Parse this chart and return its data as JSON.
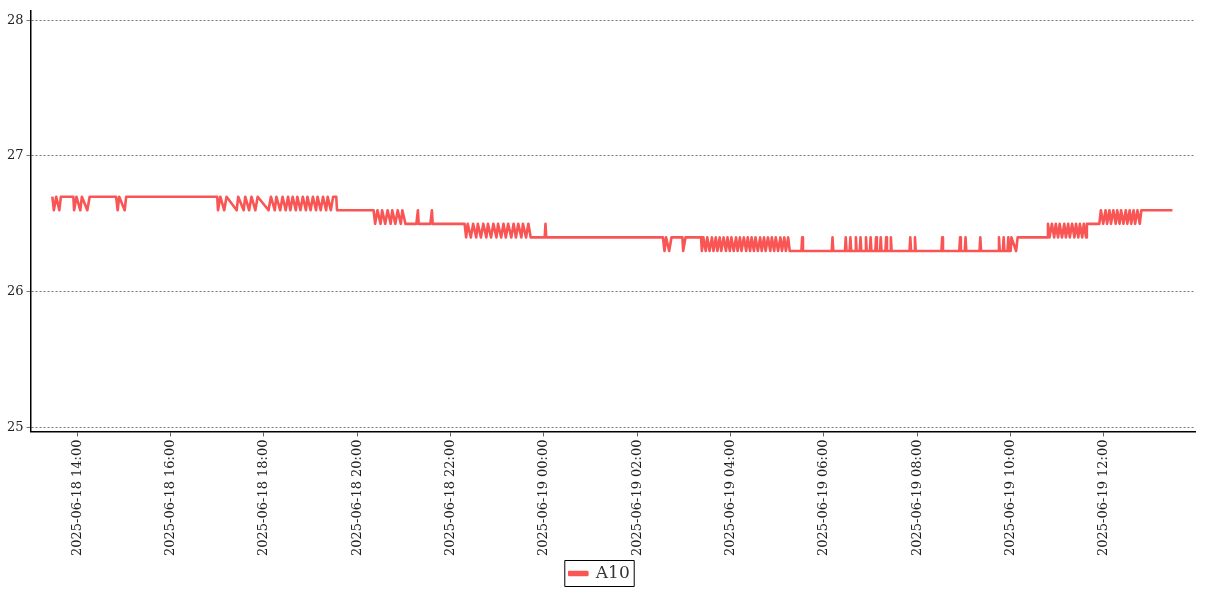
{
  "chart_data": {
    "type": "line",
    "legend": "bottom",
    "grid": "y",
    "marker": "none",
    "line_style": "solid",
    "xlim": [
      "2025-06-18T13:00",
      "2025-06-19T13:57"
    ],
    "xticks": [
      {
        "value": "2025-06-18T14:00",
        "label": "2025-06-18 14:00"
      },
      {
        "value": "2025-06-18T16:00",
        "label": "2025-06-18 16:00"
      },
      {
        "value": "2025-06-18T18:00",
        "label": "2025-06-18 18:00"
      },
      {
        "value": "2025-06-18T20:00",
        "label": "2025-06-18 20:00"
      },
      {
        "value": "2025-06-18T22:00",
        "label": "2025-06-18 22:00"
      },
      {
        "value": "2025-06-19T00:00",
        "label": "2025-06-19 00:00"
      },
      {
        "value": "2025-06-19T02:00",
        "label": "2025-06-19 02:00"
      },
      {
        "value": "2025-06-19T04:00",
        "label": "2025-06-19 04:00"
      },
      {
        "value": "2025-06-19T06:00",
        "label": "2025-06-19 06:00"
      },
      {
        "value": "2025-06-19T08:00",
        "label": "2025-06-19 08:00"
      },
      {
        "value": "2025-06-19T10:00",
        "label": "2025-06-19 10:00"
      },
      {
        "value": "2025-06-19T12:00",
        "label": "2025-06-19 12:00"
      }
    ],
    "ylim": [
      24.97,
      28.07
    ],
    "yticks": [
      25,
      26,
      27,
      28
    ],
    "x": [
      "2025-06-18T13:28",
      "2025-06-18T13:30",
      "2025-06-18T13:33",
      "2025-06-18T13:37",
      "2025-06-18T13:39",
      "2025-06-18T13:55",
      "2025-06-18T13:56",
      "2025-06-18T13:59",
      "2025-06-18T14:04",
      "2025-06-18T14:06",
      "2025-06-18T14:13",
      "2025-06-18T14:16",
      "2025-06-18T14:50",
      "2025-06-18T14:52",
      "2025-06-18T14:54",
      "2025-06-18T15:01",
      "2025-06-18T15:03",
      "2025-06-18T17:00",
      "2025-06-18T17:01",
      "2025-06-18T17:04",
      "2025-06-18T17:09",
      "2025-06-18T17:12",
      "2025-06-18T17:25",
      "2025-06-18T17:27",
      "2025-06-18T17:34",
      "2025-06-18T17:36",
      "2025-06-18T17:41",
      "2025-06-18T17:44",
      "2025-06-18T17:49",
      "2025-06-18T17:52",
      "2025-06-18T18:06",
      "2025-06-18T18:09",
      "2025-06-18T18:14",
      "2025-06-18T18:16",
      "2025-06-18T18:21",
      "2025-06-18T18:24",
      "2025-06-18T18:28",
      "2025-06-18T18:31",
      "2025-06-18T18:34",
      "2025-06-18T18:37",
      "2025-06-18T18:41",
      "2025-06-18T18:43",
      "2025-06-18T18:47",
      "2025-06-18T18:50",
      "2025-06-18T18:54",
      "2025-06-18T18:56",
      "2025-06-18T19:00",
      "2025-06-18T19:03",
      "2025-06-18T19:07",
      "2025-06-18T19:09",
      "2025-06-18T19:13",
      "2025-06-18T19:16",
      "2025-06-18T19:20",
      "2025-06-18T19:22",
      "2025-06-18T19:26",
      "2025-06-18T19:29",
      "2025-06-18T19:33",
      "2025-06-18T19:34",
      "2025-06-18T20:21",
      "2025-06-18T20:23",
      "2025-06-18T20:26",
      "2025-06-18T20:30",
      "2025-06-18T20:32",
      "2025-06-18T20:36",
      "2025-06-18T20:39",
      "2025-06-18T20:43",
      "2025-06-18T20:45",
      "2025-06-18T20:49",
      "2025-06-18T20:52",
      "2025-06-18T20:56",
      "2025-06-18T20:58",
      "2025-06-18T21:02",
      "2025-06-18T21:16",
      "2025-06-18T21:18",
      "2025-06-18T21:19",
      "2025-06-18T21:34",
      "2025-06-18T21:36",
      "2025-06-18T21:37",
      "2025-06-18T22:18",
      "2025-06-18T22:20",
      "2025-06-18T22:22",
      "2025-06-18T22:26",
      "2025-06-18T22:29",
      "2025-06-18T22:33",
      "2025-06-18T22:35",
      "2025-06-18T22:39",
      "2025-06-18T22:42",
      "2025-06-18T22:46",
      "2025-06-18T22:48",
      "2025-06-18T22:52",
      "2025-06-18T22:55",
      "2025-06-18T22:59",
      "2025-06-18T23:01",
      "2025-06-18T23:05",
      "2025-06-18T23:08",
      "2025-06-18T23:11",
      "2025-06-18T23:14",
      "2025-06-18T23:18",
      "2025-06-18T23:21",
      "2025-06-18T23:24",
      "2025-06-18T23:27",
      "2025-06-18T23:31",
      "2025-06-18T23:33",
      "2025-06-18T23:37",
      "2025-06-18T23:40",
      "2025-06-18T23:43",
      "2025-06-19T00:01",
      "2025-06-19T00:02",
      "2025-06-19T00:03",
      "2025-06-19T02:33",
      "2025-06-19T02:35",
      "2025-06-19T02:37",
      "2025-06-19T02:41",
      "2025-06-19T02:44",
      "2025-06-19T02:58",
      "2025-06-19T02:59",
      "2025-06-19T03:02",
      "2025-06-19T03:22",
      "2025-06-19T03:23",
      "2025-06-19T03:25",
      "2025-06-19T03:28",
      "2025-06-19T03:30",
      "2025-06-19T03:33",
      "2025-06-19T03:36",
      "2025-06-19T03:38",
      "2025-06-19T03:41",
      "2025-06-19T03:43",
      "2025-06-19T03:46",
      "2025-06-19T03:48",
      "2025-06-19T03:51",
      "2025-06-19T03:54",
      "2025-06-19T03:56",
      "2025-06-19T03:59",
      "2025-06-19T04:01",
      "2025-06-19T04:04",
      "2025-06-19T04:07",
      "2025-06-19T04:09",
      "2025-06-19T04:12",
      "2025-06-19T04:14",
      "2025-06-19T04:17",
      "2025-06-19T04:20",
      "2025-06-19T04:22",
      "2025-06-19T04:25",
      "2025-06-19T04:27",
      "2025-06-19T04:30",
      "2025-06-19T04:32",
      "2025-06-19T04:35",
      "2025-06-19T04:38",
      "2025-06-19T04:40",
      "2025-06-19T04:43",
      "2025-06-19T04:45",
      "2025-06-19T04:48",
      "2025-06-19T04:51",
      "2025-06-19T04:53",
      "2025-06-19T04:56",
      "2025-06-19T04:58",
      "2025-06-19T05:01",
      "2025-06-19T05:04",
      "2025-06-19T05:06",
      "2025-06-19T05:09",
      "2025-06-19T05:11",
      "2025-06-19T05:14",
      "2025-06-19T05:16",
      "2025-06-19T05:31",
      "2025-06-19T05:32",
      "2025-06-19T05:33",
      "2025-06-19T06:10",
      "2025-06-19T06:11",
      "2025-06-19T06:12",
      "2025-06-19T06:27",
      "2025-06-19T06:28",
      "2025-06-19T06:29",
      "2025-06-19T06:33",
      "2025-06-19T06:34",
      "2025-06-19T06:35",
      "2025-06-19T06:40",
      "2025-06-19T06:41",
      "2025-06-19T06:42",
      "2025-06-19T06:46",
      "2025-06-19T06:47",
      "2025-06-19T06:48",
      "2025-06-19T06:53",
      "2025-06-19T06:54",
      "2025-06-19T06:55",
      "2025-06-19T06:59",
      "2025-06-19T07:00",
      "2025-06-19T07:01",
      "2025-06-19T07:06",
      "2025-06-19T07:07",
      "2025-06-19T07:08",
      "2025-06-19T07:12",
      "2025-06-19T07:13",
      "2025-06-19T07:14",
      "2025-06-19T07:19",
      "2025-06-19T07:20",
      "2025-06-19T07:21",
      "2025-06-19T07:25",
      "2025-06-19T07:26",
      "2025-06-19T07:27",
      "2025-06-19T07:50",
      "2025-06-19T07:51",
      "2025-06-19T07:52",
      "2025-06-19T07:56",
      "2025-06-19T07:57",
      "2025-06-19T07:58",
      "2025-06-19T08:31",
      "2025-06-19T08:32",
      "2025-06-19T08:33",
      "2025-06-19T08:54",
      "2025-06-19T08:55",
      "2025-06-19T08:56",
      "2025-06-19T09:01",
      "2025-06-19T09:02",
      "2025-06-19T09:03",
      "2025-06-19T09:20",
      "2025-06-19T09:21",
      "2025-06-19T09:22",
      "2025-06-19T09:44",
      "2025-06-19T09:45",
      "2025-06-19T09:46",
      "2025-06-19T09:50",
      "2025-06-19T09:51",
      "2025-06-19T09:52",
      "2025-06-19T09:56",
      "2025-06-19T09:57",
      "2025-06-19T09:58",
      "2025-06-19T10:00",
      "2025-06-19T10:01",
      "2025-06-19T10:07",
      "2025-06-19T10:09",
      "2025-06-19T10:47",
      "2025-06-19T10:48",
      "2025-06-19T10:50",
      "2025-06-19T10:53",
      "2025-06-19T10:56",
      "2025-06-19T10:58",
      "2025-06-19T11:01",
      "2025-06-19T11:03",
      "2025-06-19T11:06",
      "2025-06-19T11:09",
      "2025-06-19T11:11",
      "2025-06-19T11:14",
      "2025-06-19T11:16",
      "2025-06-19T11:19",
      "2025-06-19T11:22",
      "2025-06-19T11:24",
      "2025-06-19T11:27",
      "2025-06-19T11:29",
      "2025-06-19T11:32",
      "2025-06-19T11:34",
      "2025-06-19T11:37",
      "2025-06-19T11:38",
      "2025-06-19T11:54",
      "2025-06-19T11:56",
      "2025-06-19T11:59",
      "2025-06-19T12:02",
      "2025-06-19T12:04",
      "2025-06-19T12:07",
      "2025-06-19T12:09",
      "2025-06-19T12:12",
      "2025-06-19T12:15",
      "2025-06-19T12:17",
      "2025-06-19T12:20",
      "2025-06-19T12:22",
      "2025-06-19T12:25",
      "2025-06-19T12:28",
      "2025-06-19T12:30",
      "2025-06-19T12:33",
      "2025-06-19T12:35",
      "2025-06-19T12:38",
      "2025-06-19T12:40",
      "2025-06-19T12:43",
      "2025-06-19T12:46",
      "2025-06-19T12:48",
      "2025-06-19T13:28"
    ],
    "series": [
      {
        "name": "A10",
        "color": "#fa5555",
        "values": [
          26.7,
          26.6,
          26.7,
          26.6,
          26.7,
          26.7,
          26.6,
          26.7,
          26.6,
          26.7,
          26.6,
          26.7,
          26.7,
          26.6,
          26.7,
          26.6,
          26.7,
          26.7,
          26.6,
          26.7,
          26.6,
          26.7,
          26.6,
          26.7,
          26.6,
          26.7,
          26.6,
          26.7,
          26.6,
          26.7,
          26.6,
          26.7,
          26.6,
          26.7,
          26.6,
          26.7,
          26.6,
          26.7,
          26.6,
          26.7,
          26.6,
          26.7,
          26.6,
          26.7,
          26.6,
          26.7,
          26.6,
          26.7,
          26.6,
          26.7,
          26.6,
          26.7,
          26.6,
          26.7,
          26.6,
          26.7,
          26.7,
          26.6,
          26.6,
          26.5,
          26.6,
          26.5,
          26.6,
          26.5,
          26.6,
          26.5,
          26.6,
          26.5,
          26.6,
          26.5,
          26.6,
          26.5,
          26.5,
          26.6,
          26.5,
          26.5,
          26.6,
          26.5,
          26.5,
          26.4,
          26.5,
          26.4,
          26.5,
          26.4,
          26.5,
          26.4,
          26.5,
          26.4,
          26.5,
          26.4,
          26.5,
          26.4,
          26.5,
          26.4,
          26.5,
          26.4,
          26.5,
          26.4,
          26.5,
          26.4,
          26.5,
          26.4,
          26.5,
          26.4,
          26.5,
          26.4,
          26.4,
          26.5,
          26.4,
          26.4,
          26.3,
          26.4,
          26.3,
          26.4,
          26.4,
          26.3,
          26.4,
          26.4,
          26.3,
          26.4,
          26.3,
          26.4,
          26.3,
          26.4,
          26.3,
          26.4,
          26.3,
          26.4,
          26.3,
          26.4,
          26.3,
          26.4,
          26.3,
          26.4,
          26.3,
          26.4,
          26.3,
          26.4,
          26.3,
          26.4,
          26.3,
          26.4,
          26.3,
          26.4,
          26.3,
          26.4,
          26.3,
          26.4,
          26.3,
          26.4,
          26.3,
          26.4,
          26.3,
          26.4,
          26.3,
          26.4,
          26.3,
          26.4,
          26.3,
          26.4,
          26.3,
          26.4,
          26.3,
          26.3,
          26.4,
          26.3,
          26.3,
          26.4,
          26.3,
          26.3,
          26.4,
          26.3,
          26.3,
          26.4,
          26.3,
          26.3,
          26.4,
          26.3,
          26.3,
          26.4,
          26.3,
          26.3,
          26.4,
          26.3,
          26.3,
          26.4,
          26.3,
          26.3,
          26.4,
          26.3,
          26.3,
          26.4,
          26.3,
          26.3,
          26.4,
          26.3,
          26.3,
          26.4,
          26.3,
          26.3,
          26.4,
          26.3,
          26.3,
          26.4,
          26.3,
          26.3,
          26.4,
          26.3,
          26.3,
          26.4,
          26.3,
          26.3,
          26.4,
          26.3,
          26.3,
          26.4,
          26.3,
          26.3,
          26.4,
          26.3,
          26.3,
          26.4,
          26.3,
          26.3,
          26.4,
          26.3,
          26.3,
          26.4,
          26.3,
          26.4,
          26.4,
          26.5,
          26.4,
          26.5,
          26.4,
          26.5,
          26.4,
          26.5,
          26.4,
          26.5,
          26.4,
          26.5,
          26.4,
          26.5,
          26.4,
          26.5,
          26.4,
          26.5,
          26.4,
          26.5,
          26.4,
          26.5,
          26.5,
          26.6,
          26.5,
          26.6,
          26.5,
          26.6,
          26.5,
          26.6,
          26.5,
          26.6,
          26.5,
          26.6,
          26.5,
          26.6,
          26.5,
          26.6,
          26.5,
          26.6,
          26.5,
          26.6,
          26.5,
          26.6,
          26.6
        ]
      }
    ]
  }
}
